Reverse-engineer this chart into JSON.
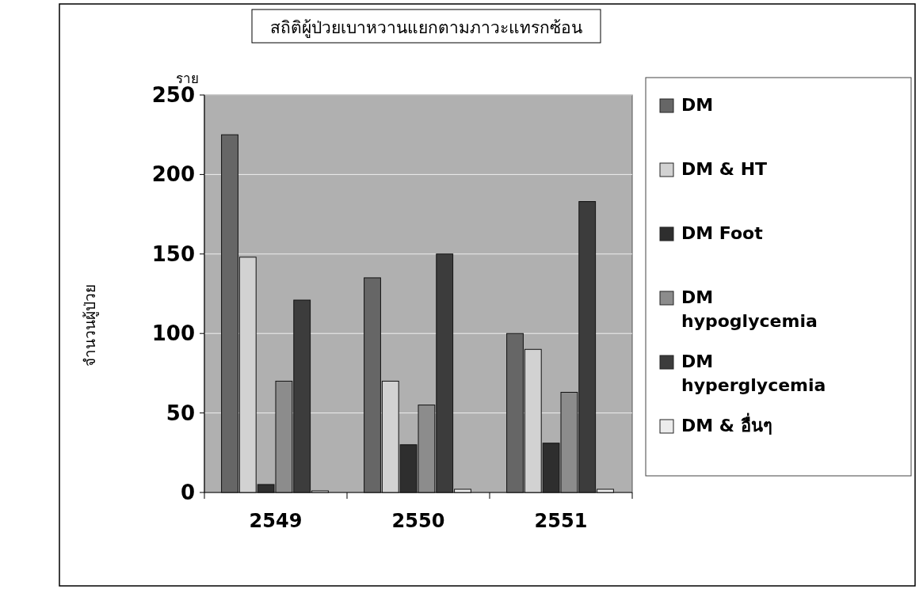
{
  "chart_data": {
    "type": "bar",
    "title": "สถิติผู้ป่วยเบาหวานแยกตามภาวะแทรกซ้อน",
    "ylabel": "จำนวนผู้ป่วย",
    "annotations": [
      "ราย"
    ],
    "categories": [
      "2549",
      "2550",
      "2551"
    ],
    "series": [
      {
        "name": "DM",
        "color": "#666666",
        "values": [
          225,
          135,
          100
        ]
      },
      {
        "name": "DM & HT",
        "color": "#d2d2d2",
        "values": [
          148,
          70,
          90
        ]
      },
      {
        "name": "DM Foot",
        "color": "#2e2e2e",
        "values": [
          5,
          30,
          31
        ]
      },
      {
        "name": "DM hypoglycemia",
        "color": "#8c8c8c",
        "values": [
          70,
          55,
          63
        ]
      },
      {
        "name": "DM hyperglycemia",
        "color": "#3c3c3c",
        "values": [
          121,
          150,
          183
        ]
      },
      {
        "name": "DM & อื่นๆ",
        "color": "#ececec",
        "values": [
          1,
          2,
          2
        ]
      }
    ],
    "ylim": [
      0,
      250
    ],
    "yticks": [
      0,
      50,
      100,
      150,
      200,
      250
    ],
    "grid": "y",
    "legend": "right"
  }
}
